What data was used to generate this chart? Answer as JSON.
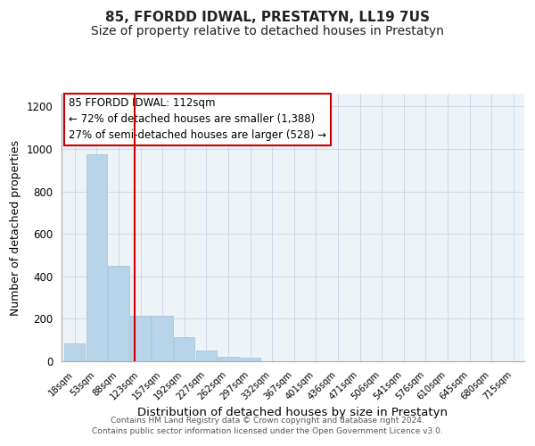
{
  "title": "85, FFORDD IDWAL, PRESTATYN, LL19 7US",
  "subtitle": "Size of property relative to detached houses in Prestatyn",
  "xlabel": "Distribution of detached houses by size in Prestatyn",
  "ylabel": "Number of detached properties",
  "bin_labels": [
    "18sqm",
    "53sqm",
    "88sqm",
    "123sqm",
    "157sqm",
    "192sqm",
    "227sqm",
    "262sqm",
    "297sqm",
    "332sqm",
    "367sqm",
    "401sqm",
    "436sqm",
    "471sqm",
    "506sqm",
    "541sqm",
    "576sqm",
    "610sqm",
    "645sqm",
    "680sqm",
    "715sqm"
  ],
  "bar_heights": [
    85,
    975,
    450,
    215,
    215,
    115,
    50,
    20,
    15,
    0,
    0,
    0,
    0,
    0,
    0,
    0,
    0,
    0,
    0,
    0,
    0
  ],
  "bar_color": "#b8d4e8",
  "bar_edge_color": "#a0c0d8",
  "vline_x": 2.72,
  "vline_color": "#cc0000",
  "annotation_line1": "85 FFORDD IDWAL: 112sqm",
  "annotation_line2": "← 72% of detached houses are smaller (1,388)",
  "annotation_line3": "27% of semi-detached houses are larger (528) →",
  "annotation_fontsize": 8.5,
  "title_fontsize": 11,
  "subtitle_fontsize": 10,
  "xlabel_fontsize": 9.5,
  "ylabel_fontsize": 9,
  "footer_text": "Contains HM Land Registry data © Crown copyright and database right 2024.\nContains public sector information licensed under the Open Government Licence v3.0.",
  "ylim": [
    0,
    1260
  ],
  "yticks": [
    0,
    200,
    400,
    600,
    800,
    1000,
    1200
  ],
  "background_color": "#ffffff",
  "grid_color": "#ccd9e8",
  "plot_bg_color": "#eef3f8"
}
